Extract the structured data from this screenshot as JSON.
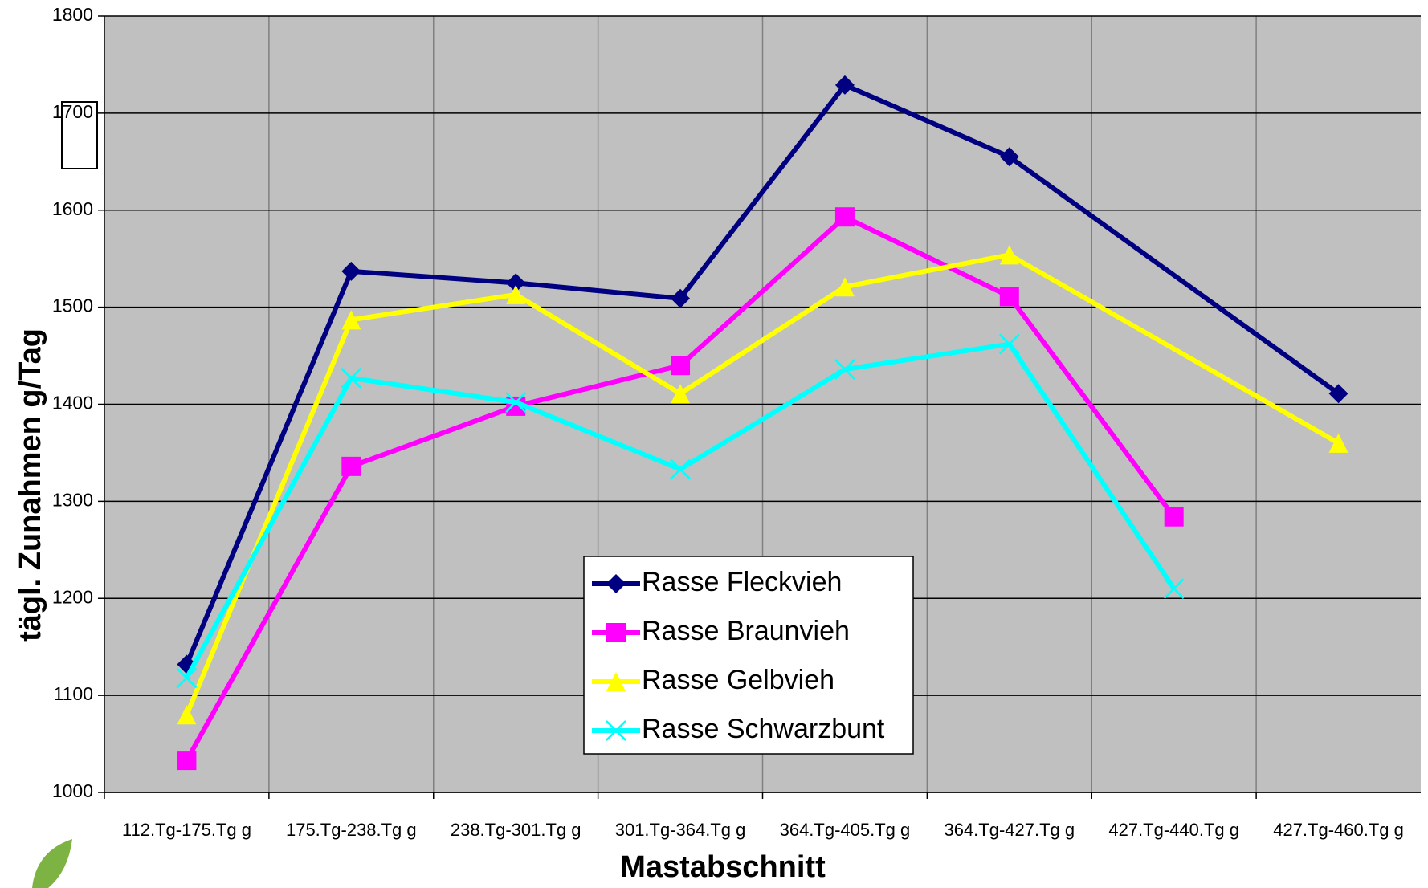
{
  "chart_data": {
    "type": "line",
    "x_label": "Mastabschnitt",
    "y_label": "tägl. Zunahmen g/Tag",
    "categories": [
      "112.Tg-175.Tg g",
      "175.Tg-238.Tg g",
      "238.Tg-301.Tg g",
      "301.Tg-364.Tg g",
      "364.Tg-405.Tg g",
      "364.Tg-427.Tg g",
      "427.Tg-440.Tg g",
      "427.Tg-460.Tg g"
    ],
    "series": [
      {
        "name": "Rasse Fleckvieh",
        "color": "#000080",
        "marker": "diamond",
        "values": [
          1132,
          1537,
          1525,
          1509,
          1729,
          1655,
          null,
          1411
        ]
      },
      {
        "name": "Rasse Braunvieh",
        "color": "#ff00ff",
        "marker": "square",
        "values": [
          1033,
          1336,
          1398,
          1440,
          1593,
          1511,
          1284,
          null
        ]
      },
      {
        "name": "Rasse Gelbvieh",
        "color": "#ffff00",
        "marker": "triangle",
        "values": [
          1080,
          1487,
          1513,
          1411,
          1521,
          1554,
          null,
          1360
        ]
      },
      {
        "name": "Rasse Schwarzbunt",
        "color": "#00ffff",
        "marker": "x",
        "values": [
          1118,
          1427,
          1402,
          1333,
          1436,
          1462,
          1210,
          null
        ]
      }
    ],
    "connect_gaps": true,
    "ylim": [
      1000,
      1800
    ],
    "yticks": [
      1000,
      1100,
      1200,
      1300,
      1400,
      1500,
      1600,
      1700,
      1800
    ],
    "grid": true,
    "plot_background": "#c0c0c0"
  }
}
